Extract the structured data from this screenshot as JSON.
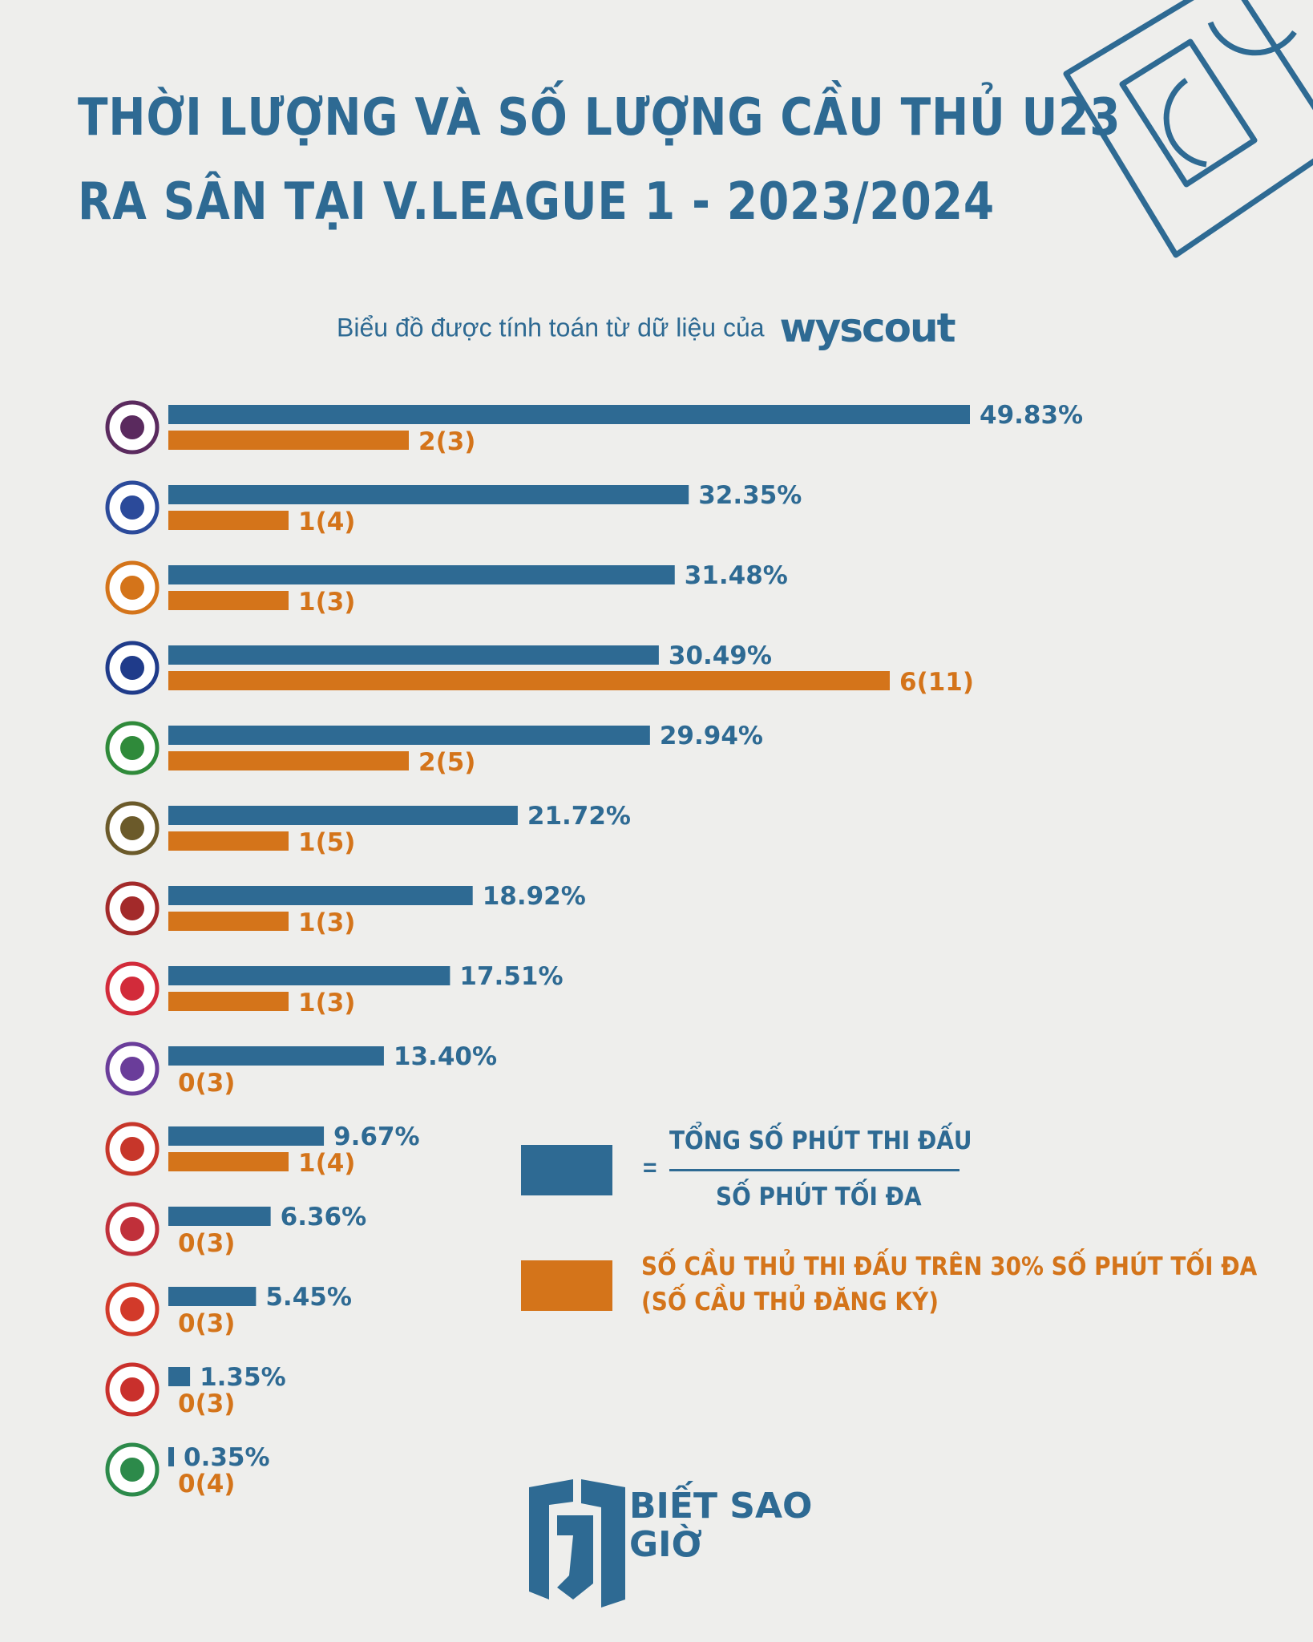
{
  "header": {
    "title_line1": "THỜI LƯỢNG VÀ SỐ LƯỢNG CẦU THỦ U23",
    "title_line2": "RA SÂN TẠI V.LEAGUE 1 - 2023/2024",
    "subtitle": "Biểu đồ được tính toán từ dữ liệu của",
    "source_logo": "wyscout"
  },
  "colors": {
    "blue": "#2e6a93",
    "orange": "#d4741a",
    "background": "#eeeeec"
  },
  "chart_data": {
    "type": "bar",
    "orientation": "horizontal",
    "series": [
      {
        "name": "TỔNG SỐ PHÚT THI ĐẤU / SỐ PHÚT TỐI ĐA",
        "unit": "%",
        "color": "#2e6a93",
        "values": [
          49.83,
          32.35,
          31.48,
          30.49,
          29.94,
          21.72,
          18.92,
          17.51,
          13.4,
          9.67,
          6.36,
          5.45,
          1.35,
          0.35
        ],
        "labels": [
          "49.83%",
          "32.35%",
          "31.48%",
          "30.49%",
          "29.94%",
          "21.72%",
          "18.92%",
          "17.51%",
          "13.40%",
          "9.67%",
          "6.36%",
          "5.45%",
          "1.35%",
          "0.35%"
        ]
      },
      {
        "name": "SỐ CẦU THỦ THI ĐẤU TRÊN 30% SỐ PHÚT TỐI ĐA (SỐ CẦU THỦ ĐĂNG KÝ)",
        "color": "#d4741a",
        "values": [
          2,
          1,
          1,
          6,
          2,
          1,
          1,
          1,
          0,
          1,
          0,
          0,
          0,
          0
        ],
        "registered": [
          3,
          4,
          3,
          11,
          5,
          5,
          3,
          3,
          3,
          4,
          3,
          3,
          3,
          4
        ],
        "labels": [
          "2(3)",
          "1(4)",
          "1(3)",
          "6(11)",
          "2(5)",
          "1(5)",
          "1(3)",
          "1(3)",
          "0(3)",
          "1(4)",
          "0(3)",
          "0(3)",
          "0(3)",
          "0(4)"
        ]
      }
    ],
    "team_logos": [
      {
        "icon": "club-crest-purple",
        "color": "#5a2a5e"
      },
      {
        "icon": "khanh-hoa-crest",
        "color": "#2b4a9a"
      },
      {
        "icon": "cong-an-ha-noi-crest",
        "color": "#d4741a"
      },
      {
        "icon": "slna-crest",
        "color": "#1f3b8a"
      },
      {
        "icon": "hoang-anh-gia-lai-crest",
        "color": "#2f8a3a"
      },
      {
        "icon": "thanh-hoa-crest",
        "color": "#6b5a2a"
      },
      {
        "icon": "quang-nam-crest",
        "color": "#a32a2a"
      },
      {
        "icon": "viettel-crest",
        "color": "#d22b3a"
      },
      {
        "icon": "ha-noi-crest",
        "color": "#6a3d9a"
      },
      {
        "icon": "ha-tinh-crest",
        "color": "#c7362a"
      },
      {
        "icon": "ho-chi-minh-city-crest",
        "color": "#c0303a"
      },
      {
        "icon": "nam-dinh-crest",
        "color": "#d23a2a"
      },
      {
        "icon": "hai-phong-crest",
        "color": "#c9302c"
      },
      {
        "icon": "binh-dinh-crest",
        "color": "#2c8a4a"
      }
    ],
    "legend_placement": "bottom-right",
    "grid": false
  },
  "legend": {
    "eq_sign": "=",
    "numerator": "TỔNG SỐ PHÚT THI ĐẤU",
    "denominator": "SỐ PHÚT TỐI ĐA",
    "orange_line1": "SỐ CẦU THỦ THI ĐẤU TRÊN 30% SỐ PHÚT TỐI ĐA",
    "orange_line2": "(SỐ CẦU THỦ ĐĂNG KÝ)"
  },
  "brand": {
    "line1": "BIẾT SAO",
    "line2": "GIỜ"
  }
}
